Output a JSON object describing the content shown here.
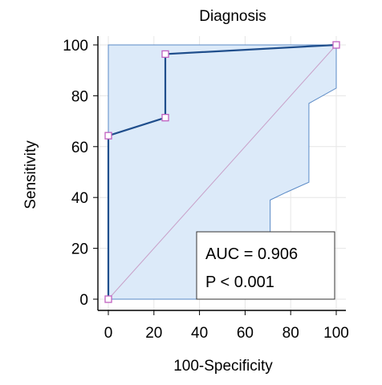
{
  "chart_data": {
    "type": "line",
    "title": "Diagnosis",
    "xlabel": "100-Specificity",
    "ylabel": "Sensitivity",
    "xlim": [
      0,
      100
    ],
    "ylim": [
      0,
      100
    ],
    "xticks": [
      0,
      20,
      40,
      60,
      80,
      100
    ],
    "yticks": [
      0,
      20,
      40,
      60,
      80,
      100
    ],
    "grid": true,
    "series": [
      {
        "type": "step-line",
        "color": "#1f4e8c",
        "x": [
          0,
          0,
          25,
          25,
          100
        ],
        "y": [
          0,
          64.3,
          71.4,
          96.4,
          100
        ],
        "markers": true,
        "marker_color": "#c060c0"
      }
    ],
    "confidence_band": {
      "color": "#dceaf9",
      "edge_color": "#5a8ac6",
      "upper": {
        "x": [
          0,
          0,
          100
        ],
        "y": [
          0,
          100,
          100
        ]
      },
      "lower": {
        "x": [
          0,
          71,
          71,
          78,
          88,
          88,
          100,
          100
        ],
        "y": [
          0,
          0,
          39,
          42,
          46,
          77,
          83,
          100
        ]
      }
    },
    "reference_line": {
      "from": [
        0,
        0
      ],
      "to": [
        100,
        100
      ],
      "color": "#c8a0c8"
    },
    "annotation": {
      "lines": [
        "AUC = 0.906",
        "P < 0.001"
      ],
      "position": "bottom-right"
    }
  }
}
